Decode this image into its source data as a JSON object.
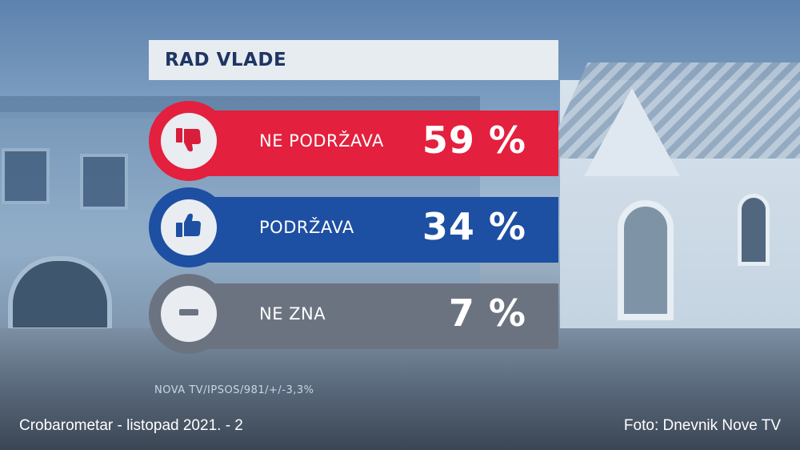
{
  "title": "RAD VLADE",
  "source": "NOVA TV/IPSOS/981/+/-3,3%",
  "footer": {
    "left": "Crobarometar - listopad 2021. - 2",
    "right": "Foto: Dnevnik Nove TV"
  },
  "colors": {
    "ne_podrzava": "#e3203d",
    "podrzava": "#1d4fa3",
    "ne_zna": "#6c7380"
  },
  "chart_data": {
    "type": "table",
    "title": "RAD VLADE",
    "rows": [
      {
        "label": "NE PODRŽAVA",
        "value": 59,
        "display": "59 %",
        "icon": "thumbs-down-icon",
        "color": "#e3203d"
      },
      {
        "label": "PODRŽAVA",
        "value": 34,
        "display": "34 %",
        "icon": "thumbs-up-icon",
        "color": "#1d4fa3"
      },
      {
        "label": "NE ZNA",
        "value": 7,
        "display": "7 %",
        "icon": "minus-icon",
        "color": "#6c7380"
      }
    ]
  }
}
